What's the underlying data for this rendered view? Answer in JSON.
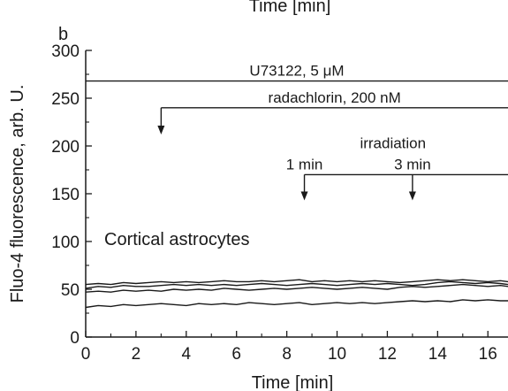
{
  "page": {
    "clipped_top_text": "Time [min]",
    "panel_label": "b"
  },
  "chart_data": {
    "type": "line",
    "xlabel": "Time [min]",
    "ylabel": "Fluo-4 fluorescence, arb. U.",
    "xlim": [
      0,
      16.8
    ],
    "ylim": [
      0,
      300
    ],
    "xticks": [
      0,
      2,
      4,
      6,
      8,
      10,
      12,
      14,
      16
    ],
    "yticks": [
      0,
      50,
      100,
      150,
      200,
      250,
      300
    ],
    "x": [
      0,
      0.5,
      1,
      1.5,
      2,
      2.5,
      3,
      3.5,
      4,
      4.5,
      5,
      5.5,
      6,
      6.5,
      7,
      7.5,
      8,
      8.5,
      9,
      9.5,
      10,
      10.5,
      11,
      11.5,
      12,
      12.5,
      13,
      13.5,
      14,
      14.5,
      15,
      15.5,
      16,
      16.5,
      16.8
    ],
    "series": [
      {
        "values": [
          55,
          56,
          55,
          57,
          56,
          57,
          58,
          57,
          58,
          57,
          58,
          59,
          58,
          58,
          59,
          58,
          59,
          60,
          58,
          59,
          58,
          59,
          58,
          59,
          58,
          57,
          58,
          59,
          60,
          59,
          60,
          59,
          58,
          59,
          58
        ]
      },
      {
        "values": [
          51,
          53,
          52,
          54,
          53,
          53,
          54,
          55,
          54,
          55,
          54,
          55,
          54,
          55,
          56,
          55,
          54,
          55,
          56,
          55,
          54,
          55,
          56,
          55,
          56,
          55,
          54,
          55,
          57,
          58,
          57,
          56,
          57,
          56,
          55
        ]
      },
      {
        "values": [
          47,
          48,
          47,
          49,
          48,
          49,
          48,
          50,
          49,
          50,
          49,
          51,
          50,
          49,
          50,
          51,
          50,
          51,
          52,
          51,
          50,
          51,
          52,
          51,
          50,
          52,
          53,
          52,
          53,
          54,
          55,
          54,
          53,
          54,
          53
        ]
      },
      {
        "values": [
          31,
          33,
          32,
          34,
          33,
          34,
          35,
          34,
          33,
          35,
          34,
          35,
          34,
          36,
          35,
          34,
          35,
          36,
          34,
          35,
          36,
          35,
          36,
          35,
          36,
          37,
          38,
          37,
          38,
          37,
          39,
          38,
          39,
          38,
          38
        ]
      }
    ],
    "treatments": [
      {
        "label": "U73122, 5 μM",
        "y": 268,
        "x_start": 0,
        "x_end": 16.8
      },
      {
        "label": "radachlorin, 200 nM",
        "y": 240,
        "x_start": 3.0,
        "x_end": 16.8
      },
      {
        "label": "irradiation",
        "y": 170,
        "x_start": 8.7,
        "x_end": 16.8
      }
    ],
    "arrows": [
      {
        "x": 3.0,
        "y_top": 240,
        "y_bottom": 212
      },
      {
        "x": 8.7,
        "y_top": 170,
        "y_bottom": 143,
        "label": "1 min"
      },
      {
        "x": 13.0,
        "y_top": 170,
        "y_bottom": 143,
        "label": "3 min"
      }
    ],
    "annotation": "Cortical astrocytes"
  }
}
